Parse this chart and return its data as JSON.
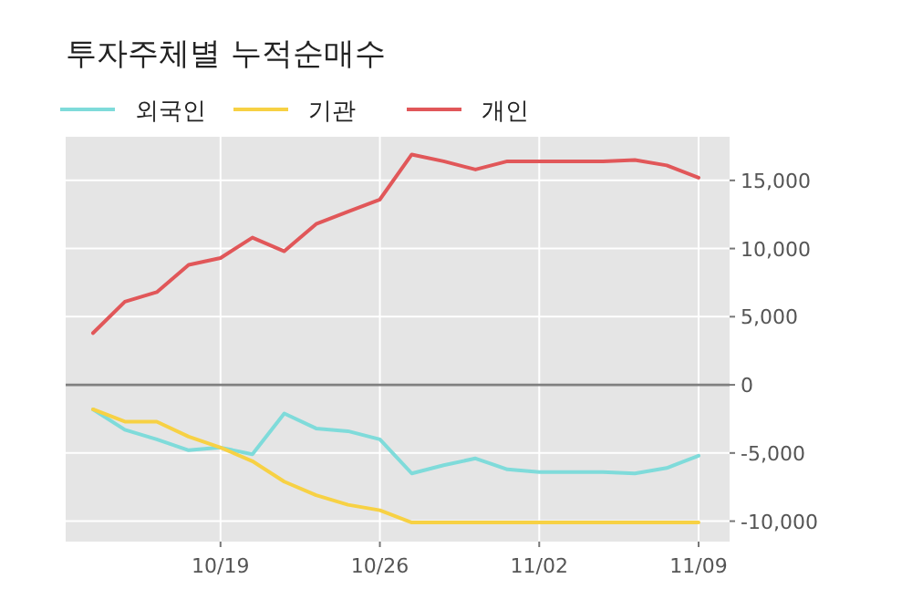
{
  "chart_data": {
    "type": "line",
    "title": "투자주체별 누적순매수",
    "categories": [
      null,
      null,
      null,
      null,
      "10/19",
      null,
      null,
      null,
      null,
      "10/26",
      null,
      null,
      null,
      null,
      "11/02",
      null,
      null,
      null,
      null,
      "11/09"
    ],
    "series": [
      {
        "name": "외국인",
        "color": "#7fdbda",
        "values": [
          -1800,
          -3300,
          -4000,
          -4800,
          -4600,
          -5100,
          -2100,
          -3200,
          -3400,
          -4000,
          -6500,
          -5900,
          -5400,
          -6200,
          -6400,
          -6400,
          -6400,
          -6500,
          -6100,
          -5200
        ]
      },
      {
        "name": "기관",
        "color": "#f7d144",
        "values": [
          -1800,
          -2700,
          -2700,
          -3800,
          -4600,
          -5600,
          -7100,
          -8100,
          -8800,
          -9200,
          -10100,
          -10100,
          -10100,
          -10100,
          -10100,
          -10100,
          -10100,
          -10100,
          -10100,
          -10100
        ]
      },
      {
        "name": "개인",
        "color": "#e15759",
        "values": [
          3800,
          6100,
          6800,
          8800,
          9300,
          10800,
          9800,
          11800,
          12700,
          13600,
          16900,
          16400,
          15800,
          16400,
          16400,
          16400,
          16400,
          16500,
          16100,
          15200
        ]
      }
    ],
    "ylim": [
      -11500,
      18200
    ],
    "yticks": [
      {
        "value": -10000,
        "label": "-10,000"
      },
      {
        "value": -5000,
        "label": "-5,000"
      },
      0,
      {
        "value": 5000,
        "label": "5,000"
      },
      {
        "value": 10000,
        "label": "10,000"
      },
      {
        "value": 15000,
        "label": "15,000"
      }
    ],
    "ref_lines": [
      {
        "axis": "y",
        "value": 0,
        "color": "#808080"
      }
    ],
    "grid": true,
    "legend": "top",
    "marker": "none",
    "line_style": "solid"
  }
}
